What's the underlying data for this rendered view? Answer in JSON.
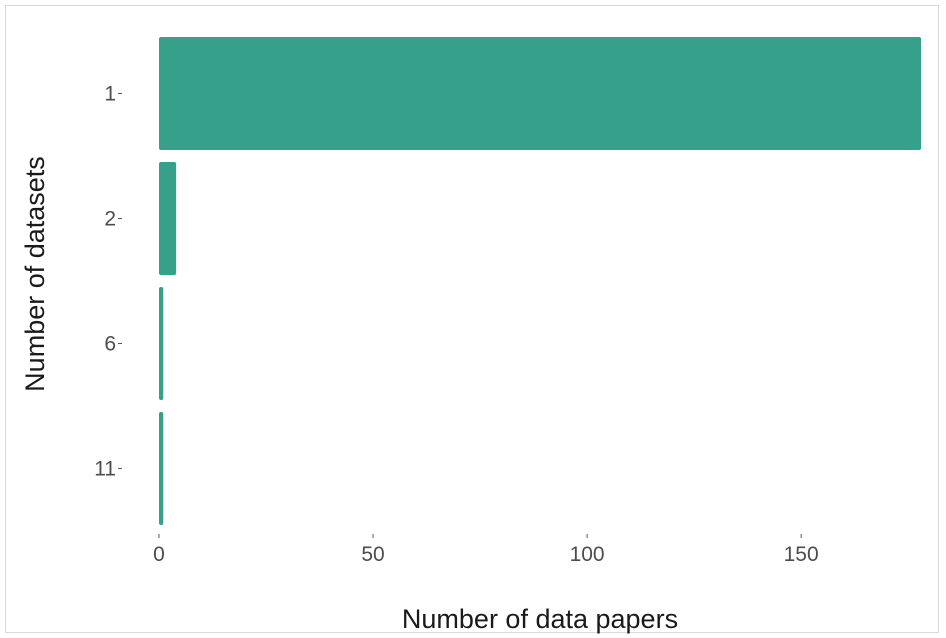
{
  "chart_data": {
    "type": "bar",
    "orientation": "horizontal",
    "categories": [
      "1",
      "2",
      "6",
      "11"
    ],
    "values": [
      178,
      4,
      1,
      1
    ],
    "xlabel": "Number of data papers",
    "ylabel": "Number of datasets",
    "xticks": [
      "0",
      "50",
      "100",
      "150"
    ],
    "xlim": [
      0,
      178
    ],
    "grid": false,
    "bar_color": "#36a08a"
  }
}
